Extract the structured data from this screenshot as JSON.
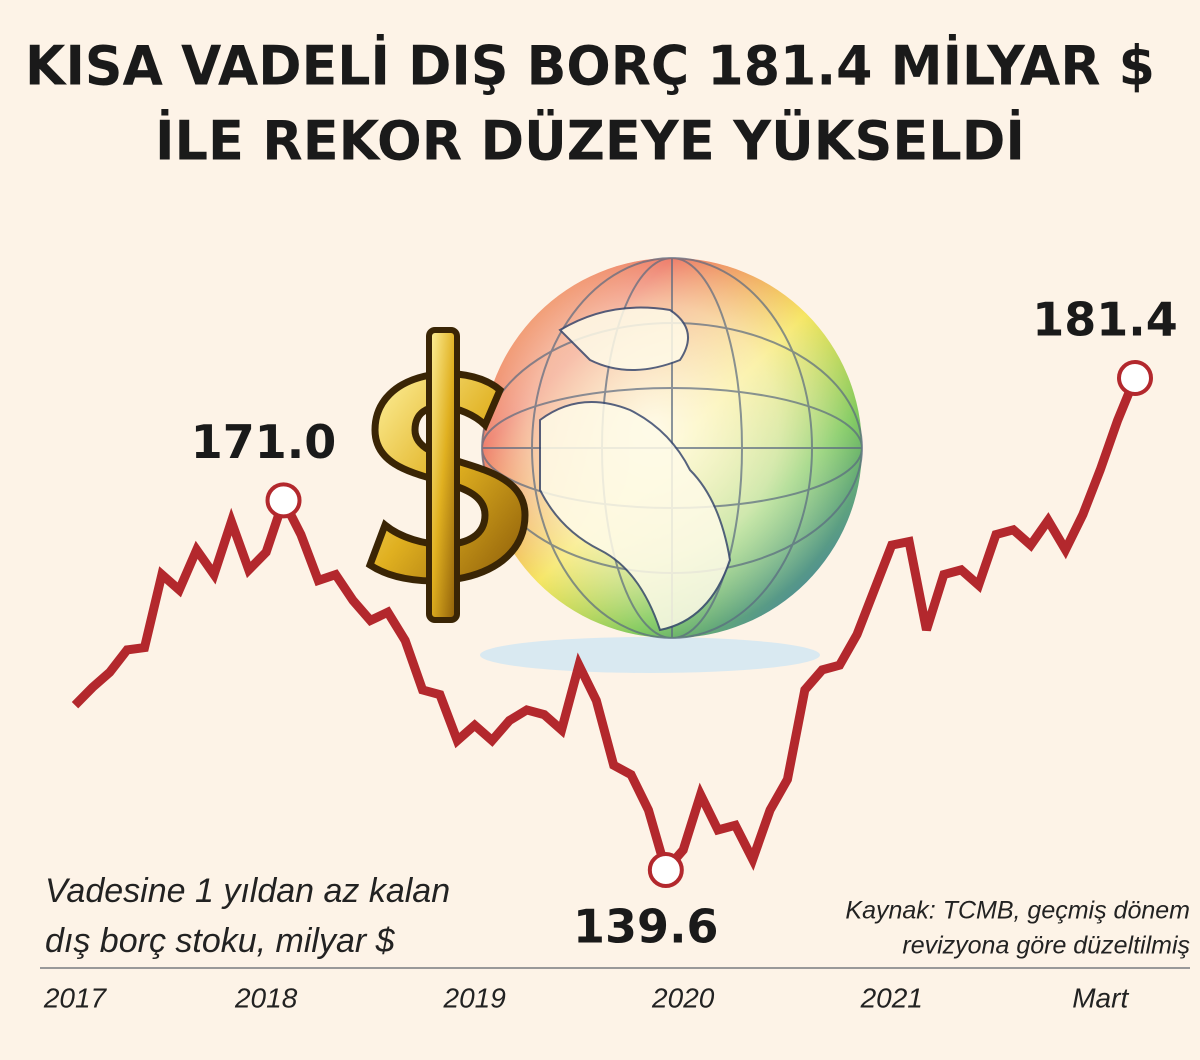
{
  "chart_data": {
    "type": "line",
    "title": [
      "KISA VADELİ DIŞ BORÇ 181.4 MİLYAR $",
      "İLE REKOR DÜZEYE YÜKSELDİ"
    ],
    "subtitle": [
      "Vadesine 1 yıldan az kalan",
      "dış borç stoku, milyar $"
    ],
    "source": [
      "Kaynak: TCMB, geçmiş dönem",
      "revizyona göre düzeltilmiş"
    ],
    "categories": [
      "2017",
      null,
      null,
      null,
      null,
      null,
      null,
      null,
      null,
      null,
      null,
      "2018",
      null,
      null,
      null,
      null,
      null,
      null,
      null,
      null,
      null,
      null,
      null,
      "2019",
      null,
      null,
      null,
      null,
      null,
      null,
      null,
      null,
      null,
      null,
      null,
      "2020",
      null,
      null,
      null,
      null,
      null,
      null,
      null,
      null,
      null,
      null,
      null,
      "2021",
      null,
      null,
      null,
      null,
      null,
      null,
      null,
      null,
      null,
      null,
      null,
      "Mart",
      null,
      null
    ],
    "series": [
      {
        "color": "#b3282d",
        "values": [
          153.6,
          155.1,
          156.4,
          158.3,
          158.5,
          164.7,
          163.4,
          166.8,
          164.7,
          169.2,
          165.1,
          166.6,
          171.0,
          168.1,
          164.2,
          164.7,
          162.5,
          160.8,
          161.5,
          159.1,
          154.9,
          154.5,
          150.6,
          151.9,
          150.6,
          152.3,
          153.2,
          152.8,
          151.5,
          157.0,
          154.0,
          148.5,
          147.7,
          144.7,
          139.6,
          141.3,
          146.0,
          143.0,
          143.4,
          140.5,
          144.7,
          147.3,
          154.9,
          156.6,
          157.0,
          159.6,
          163.4,
          167.2,
          167.5,
          160.0,
          164.7,
          165.1,
          163.8,
          168.1,
          168.5,
          167.2,
          169.3,
          166.8,
          169.8,
          173.6,
          177.8,
          181.4
        ],
        "value_labels": [
          null,
          null,
          null,
          null,
          null,
          null,
          null,
          null,
          null,
          null,
          null,
          null,
          "171.0",
          null,
          null,
          null,
          null,
          null,
          null,
          null,
          null,
          null,
          null,
          null,
          null,
          null,
          null,
          null,
          null,
          null,
          null,
          null,
          null,
          null,
          "139.6",
          null,
          null,
          null,
          null,
          null,
          null,
          null,
          null,
          null,
          null,
          null,
          null,
          null,
          null,
          null,
          null,
          null,
          null,
          null,
          null,
          null,
          null,
          null,
          null,
          null,
          null,
          "181.4"
        ]
      }
    ]
  }
}
